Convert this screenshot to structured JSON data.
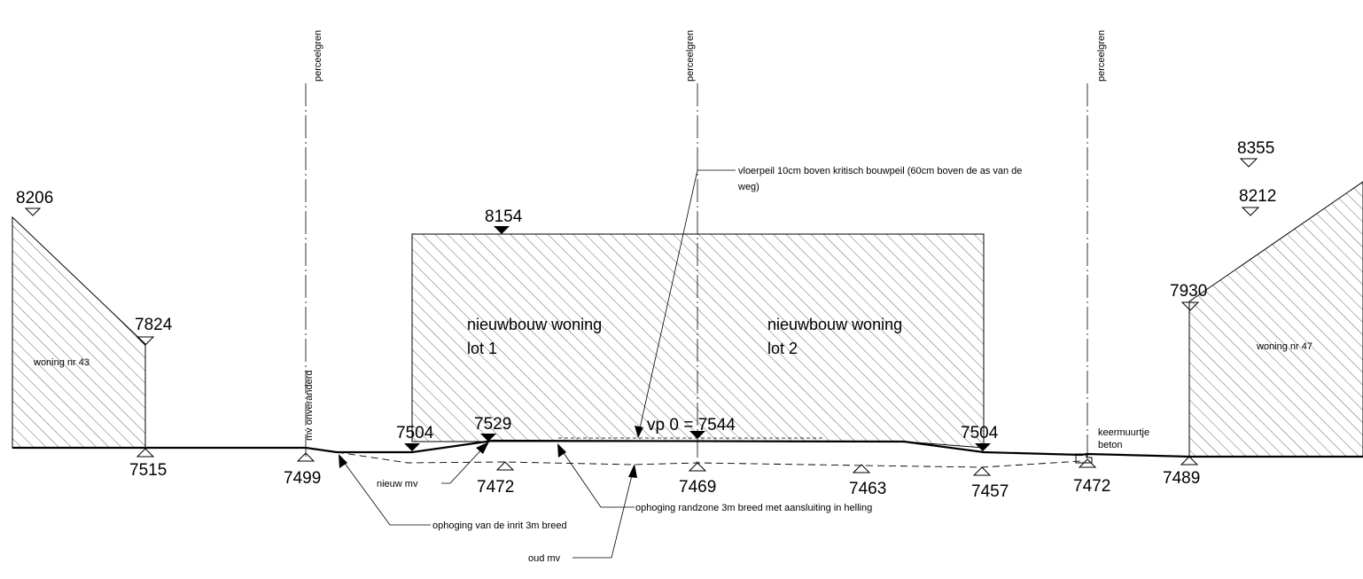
{
  "left_house": {
    "label": "woning nr 43",
    "peak_level": "8206",
    "eave_level": "7824",
    "ground_level": "7515"
  },
  "right_house": {
    "label": "woning nr 47",
    "peak_level": "8355",
    "roof_level": "8212",
    "eave_level": "7930",
    "ground_level": "7489"
  },
  "boundaries": [
    {
      "label": "perceelgren"
    },
    {
      "label": "perceelgren"
    },
    {
      "label": "perceelgren"
    }
  ],
  "new_build": {
    "lot1_line1": "nieuwbouw woning",
    "lot1_line2": "lot 1",
    "lot2_line1": "nieuwbouw woning",
    "lot2_line2": "lot 2",
    "roof_level": "8154",
    "floor_level_text": "vp 0 = 7544",
    "left_edge_level": "7504",
    "right_edge_level": "7504",
    "ramp_top_level": "7529"
  },
  "levels": {
    "mv_left": "7499",
    "mv_right_1": "7472",
    "center": "7469",
    "mid_right": "7463",
    "right_edge": "7457",
    "old_mv_1": "7472"
  },
  "annotations": {
    "mv_unchanged": "mv onveranderd",
    "floor_note_line1": "vloerpeil 10cm boven kritisch bouwpeil (60cm boven de as van de",
    "floor_note_line2": "weg)",
    "new_mv": "nieuw mv",
    "driveway": "ophoging van de inrit 3m breed",
    "edge_zone": "ophoging randzone 3m breed met aansluiting in helling",
    "old_mv": "oud mv",
    "retaining_wall_line1": "keermuurtje",
    "retaining_wall_line2": "beton"
  }
}
